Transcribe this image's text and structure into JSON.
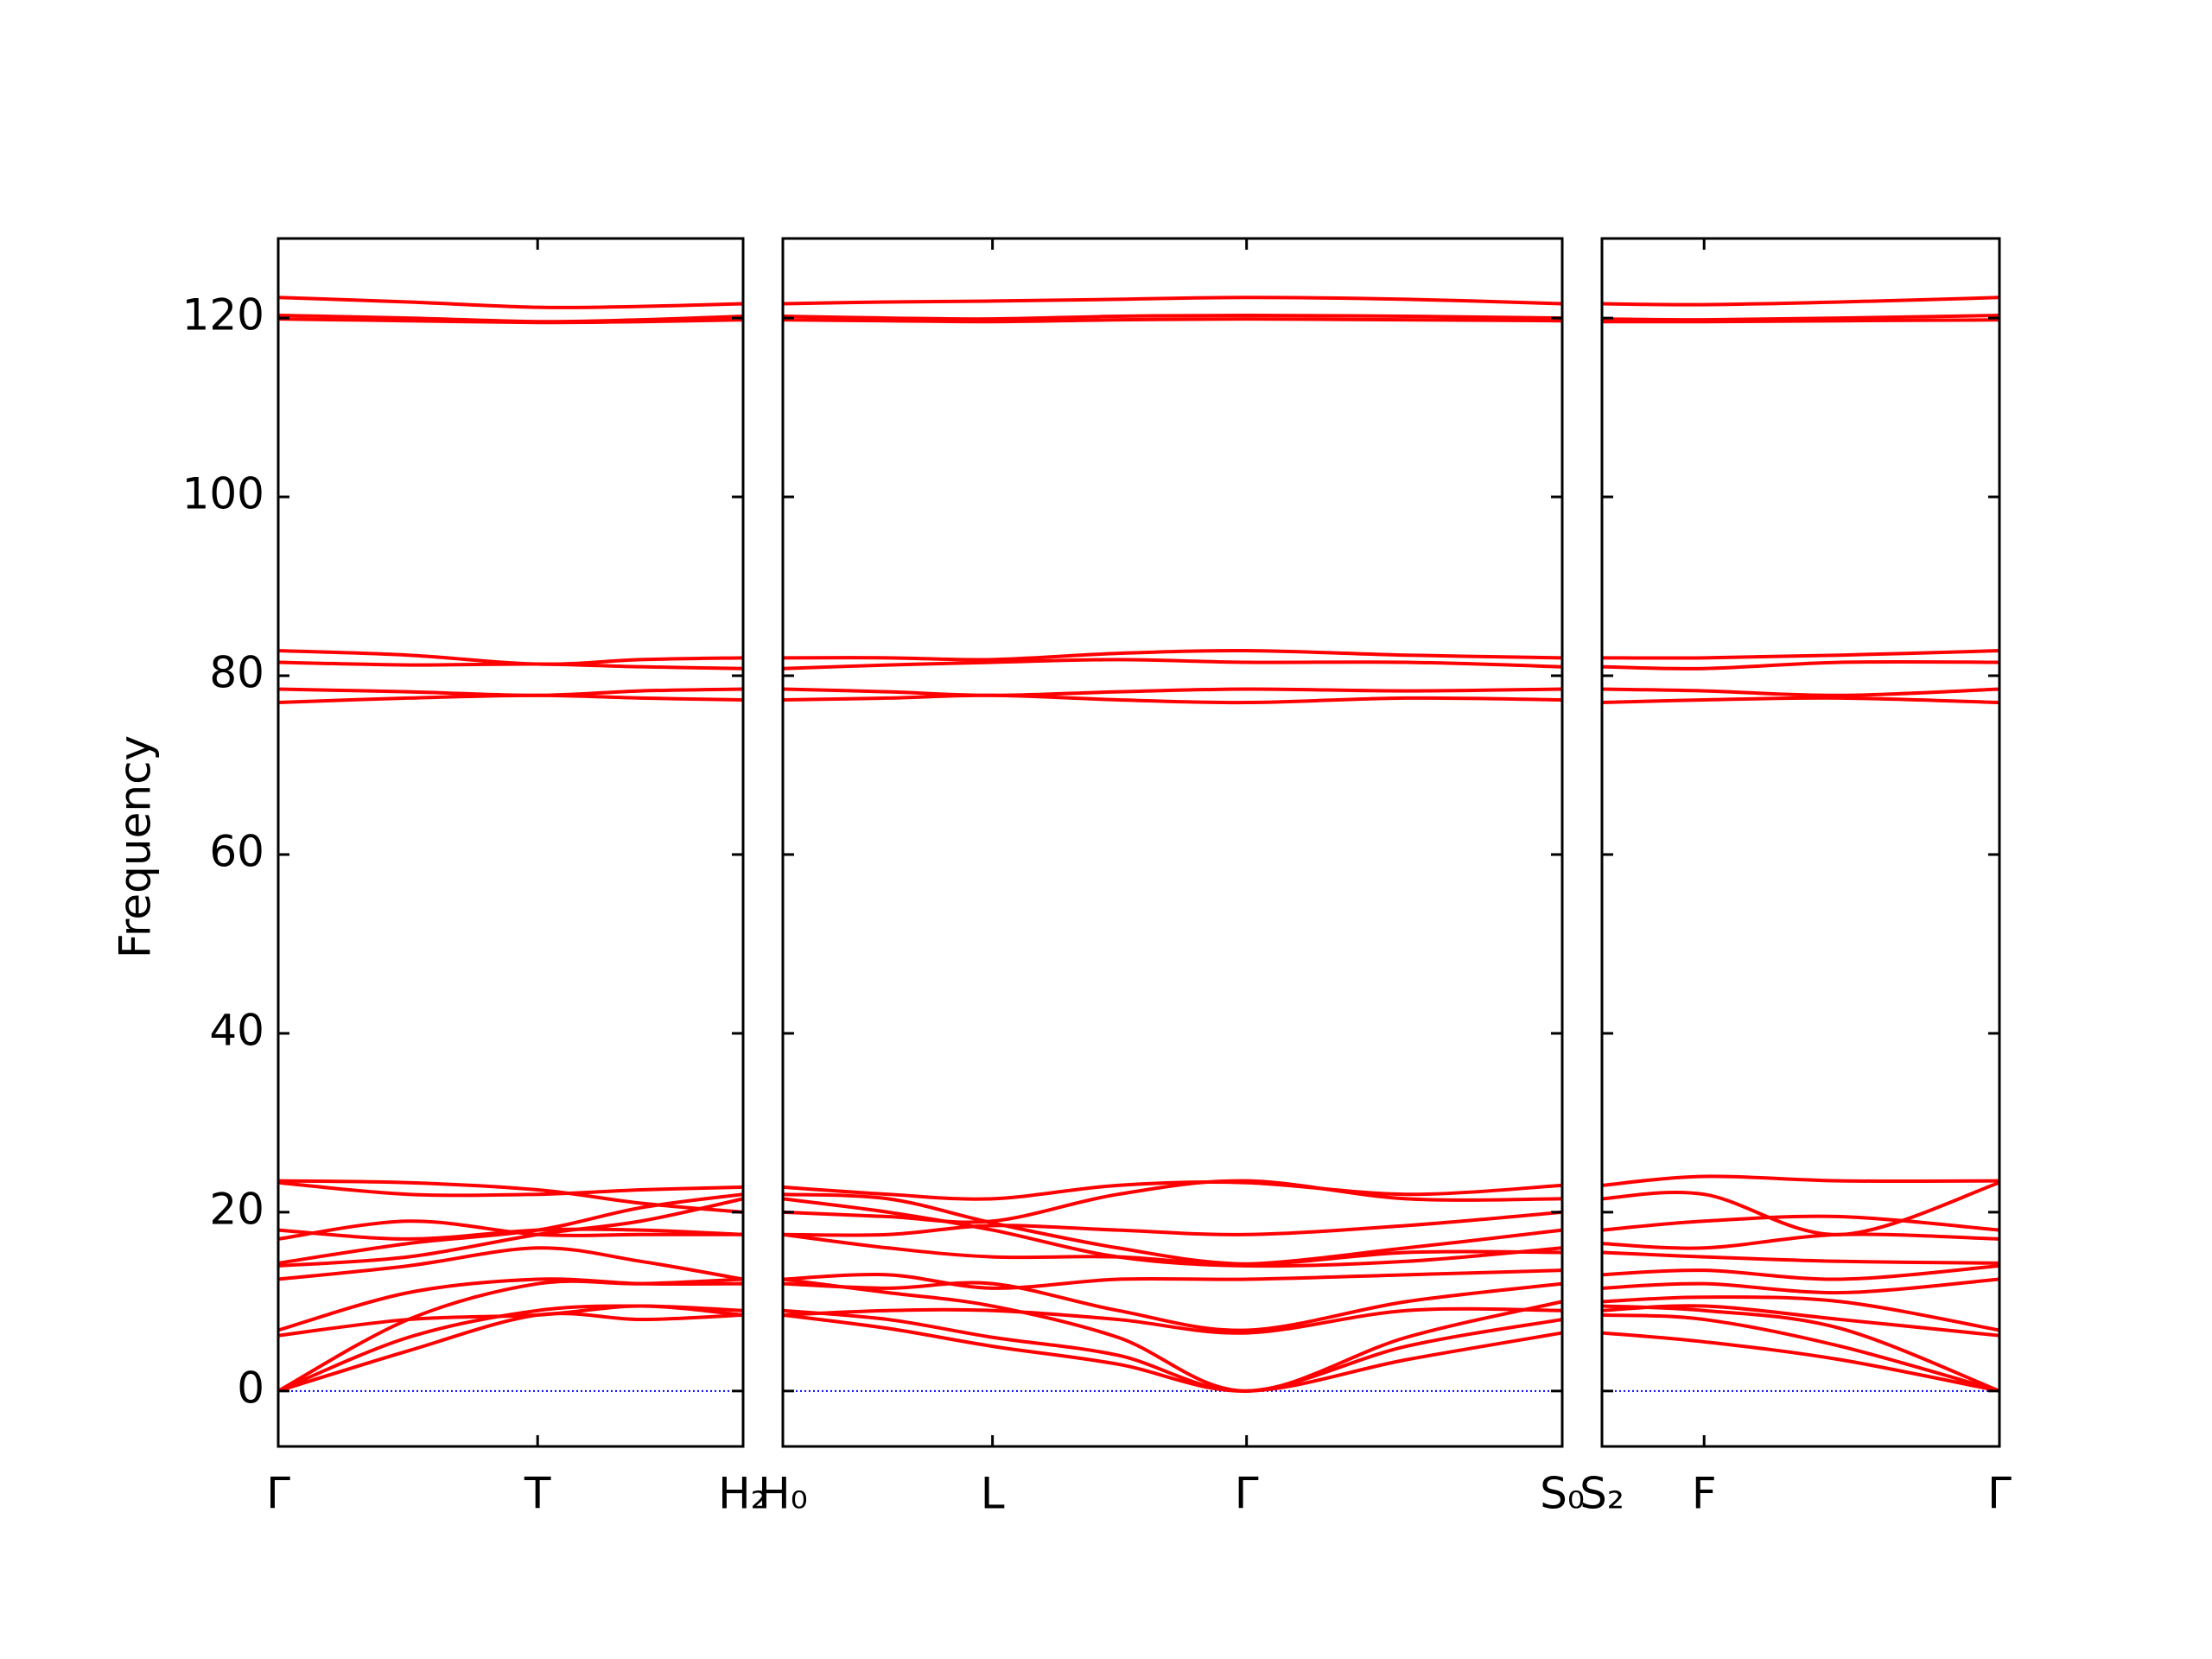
{
  "chart_data": [
    {
      "type": "line",
      "ylabel": "Frequency",
      "color": "#ff0000",
      "zero_line": "#0000ff",
      "xlim": [
        0,
        1
      ],
      "xticks": [
        {
          "value": 0,
          "label": "Γ"
        },
        {
          "value": 0.558,
          "label": "T"
        },
        {
          "value": 1,
          "label": "H₂"
        }
      ],
      "ylim": [
        -6.2,
        128.9
      ],
      "yticks": [
        0,
        20,
        40,
        60,
        80,
        100,
        120
      ],
      "ytick_labels": true,
      "x": [
        0,
        0.28,
        0.558,
        0.78,
        1
      ],
      "series": [
        {
          "values": [
            0,
            4.5,
            8.5,
            8,
            8.5
          ]
        },
        {
          "values": [
            0,
            6,
            9,
            9.5,
            9
          ]
        },
        {
          "values": [
            0,
            8,
            12,
            12,
            12.5
          ]
        },
        {
          "values": [
            6.2,
            8,
            8.5,
            9.5,
            8.5
          ]
        },
        {
          "values": [
            6.8,
            11,
            12.5,
            12,
            12
          ]
        },
        {
          "values": [
            12.5,
            14,
            16,
            14.5,
            12.5
          ]
        },
        {
          "values": [
            14,
            15,
            17.5,
            19,
            21.5
          ]
        },
        {
          "values": [
            14.3,
            16.5,
            18,
            20.5,
            22
          ]
        },
        {
          "values": [
            17,
            19,
            17.5,
            17.5,
            17.5
          ]
        },
        {
          "values": [
            18,
            17,
            18,
            18,
            17.5
          ]
        },
        {
          "values": [
            23.3,
            22,
            22,
            22.5,
            22.8
          ]
        },
        {
          "values": [
            23.5,
            23.3,
            22.5,
            21,
            20
          ]
        },
        {
          "values": [
            77,
            77.5,
            77.8,
            77.5,
            77.3
          ]
        },
        {
          "values": [
            78.5,
            78.2,
            77.8,
            78.3,
            78.5
          ]
        },
        {
          "values": [
            81.5,
            81.2,
            81.3,
            81,
            80.8
          ]
        },
        {
          "values": [
            82.8,
            82.3,
            81.3,
            81.8,
            82
          ]
        },
        {
          "values": [
            119.9,
            119.7,
            119.5,
            119.6,
            119.8
          ]
        },
        {
          "values": [
            120.3,
            120,
            119.6,
            119.8,
            120.2
          ]
        },
        {
          "values": [
            122.3,
            121.8,
            121.2,
            121.3,
            121.6
          ]
        }
      ]
    },
    {
      "type": "line",
      "color": "#ff0000",
      "zero_line": "#0000ff",
      "xlim": [
        0,
        1
      ],
      "xticks": [
        {
          "value": 0,
          "label": "H₀"
        },
        {
          "value": 0.269,
          "label": "L"
        },
        {
          "value": 0.595,
          "label": "Γ"
        },
        {
          "value": 1,
          "label": "S₀"
        }
      ],
      "ylim": [
        -6.2,
        128.9
      ],
      "yticks": [
        0,
        20,
        40,
        60,
        80,
        100,
        120
      ],
      "ytick_labels": false,
      "x": [
        0,
        0.135,
        0.269,
        0.43,
        0.595,
        0.8,
        1
      ],
      "series": [
        {
          "values": [
            8.5,
            7,
            5,
            3,
            0,
            3.5,
            6.5
          ]
        },
        {
          "values": [
            9,
            8,
            6,
            4,
            0,
            5,
            8
          ]
        },
        {
          "values": [
            12.5,
            11,
            9.5,
            6,
            0,
            6,
            10
          ]
        },
        {
          "values": [
            8.5,
            9,
            9,
            8,
            6.5,
            9,
            9
          ]
        },
        {
          "values": [
            12,
            11.5,
            12,
            9,
            6.8,
            10,
            12
          ]
        },
        {
          "values": [
            12.5,
            13,
            11.5,
            12.5,
            12.5,
            13,
            13.5
          ]
        },
        {
          "values": [
            21.5,
            20,
            18,
            15,
            14,
            14.5,
            16
          ]
        },
        {
          "values": [
            22,
            21.5,
            18.8,
            16,
            14.2,
            15.5,
            15.5
          ]
        },
        {
          "values": [
            17.5,
            17.5,
            18.5,
            18,
            17.5,
            18.5,
            20
          ]
        },
        {
          "values": [
            17.5,
            16,
            15,
            15,
            14.2,
            16,
            18
          ]
        },
        {
          "values": [
            22.8,
            22,
            21.5,
            23,
            23.3,
            22,
            23
          ]
        },
        {
          "values": [
            20,
            19.5,
            19,
            22,
            23.5,
            21.5,
            21.5
          ]
        },
        {
          "values": [
            77.3,
            77.5,
            77.8,
            77.3,
            77,
            77.5,
            77.3
          ]
        },
        {
          "values": [
            78.5,
            78.2,
            77.8,
            78.2,
            78.5,
            78.3,
            78.5
          ]
        },
        {
          "values": [
            80.8,
            81.2,
            81.5,
            81.8,
            81.5,
            81.5,
            81
          ]
        },
        {
          "values": [
            82,
            82,
            81.8,
            82.5,
            82.8,
            82.3,
            82
          ]
        },
        {
          "values": [
            119.8,
            119.7,
            119.6,
            119.8,
            119.9,
            119.8,
            119.7
          ]
        },
        {
          "values": [
            120.2,
            120,
            119.9,
            120.2,
            120.3,
            120.2,
            120
          ]
        },
        {
          "values": [
            121.6,
            121.8,
            121.9,
            122.1,
            122.3,
            122.1,
            121.6
          ]
        }
      ]
    },
    {
      "type": "line",
      "color": "#ff0000",
      "zero_line": "#0000ff",
      "xlim": [
        0,
        1
      ],
      "xticks": [
        {
          "value": 0,
          "label": "S₂"
        },
        {
          "value": 0.257,
          "label": "F"
        },
        {
          "value": 1,
          "label": "Γ"
        }
      ],
      "ylim": [
        -6.2,
        128.9
      ],
      "yticks": [
        0,
        20,
        40,
        60,
        80,
        100,
        120
      ],
      "ytick_labels": false,
      "x": [
        0,
        0.257,
        0.6,
        1
      ],
      "series": [
        {
          "values": [
            6.5,
            5.5,
            3.5,
            0
          ]
        },
        {
          "values": [
            8.5,
            8,
            5,
            0
          ]
        },
        {
          "values": [
            9.5,
            9,
            7,
            0
          ]
        },
        {
          "values": [
            9,
            9.5,
            8,
            6.2
          ]
        },
        {
          "values": [
            10,
            10.5,
            10,
            6.8
          ]
        },
        {
          "values": [
            11.5,
            12,
            11,
            12.5
          ]
        },
        {
          "values": [
            13,
            13.5,
            12.5,
            14
          ]
        },
        {
          "values": [
            15.5,
            15,
            14.5,
            14.3
          ]
        },
        {
          "values": [
            16.5,
            16,
            17.5,
            17
          ]
        },
        {
          "values": [
            18,
            19,
            19.5,
            18
          ]
        },
        {
          "values": [
            21.5,
            22,
            17.5,
            23.3
          ]
        },
        {
          "values": [
            23,
            24,
            23.5,
            23.5
          ]
        },
        {
          "values": [
            77,
            77.3,
            77.5,
            77
          ]
        },
        {
          "values": [
            78.5,
            78.3,
            77.8,
            78.5
          ]
        },
        {
          "values": [
            81,
            80.8,
            81.5,
            81.5
          ]
        },
        {
          "values": [
            82,
            82,
            82.3,
            82.8
          ]
        },
        {
          "values": [
            119.6,
            119.6,
            119.7,
            119.8
          ]
        },
        {
          "values": [
            119.9,
            119.8,
            120,
            120.3
          ]
        },
        {
          "values": [
            121.6,
            121.5,
            121.8,
            122.3
          ]
        }
      ]
    }
  ]
}
